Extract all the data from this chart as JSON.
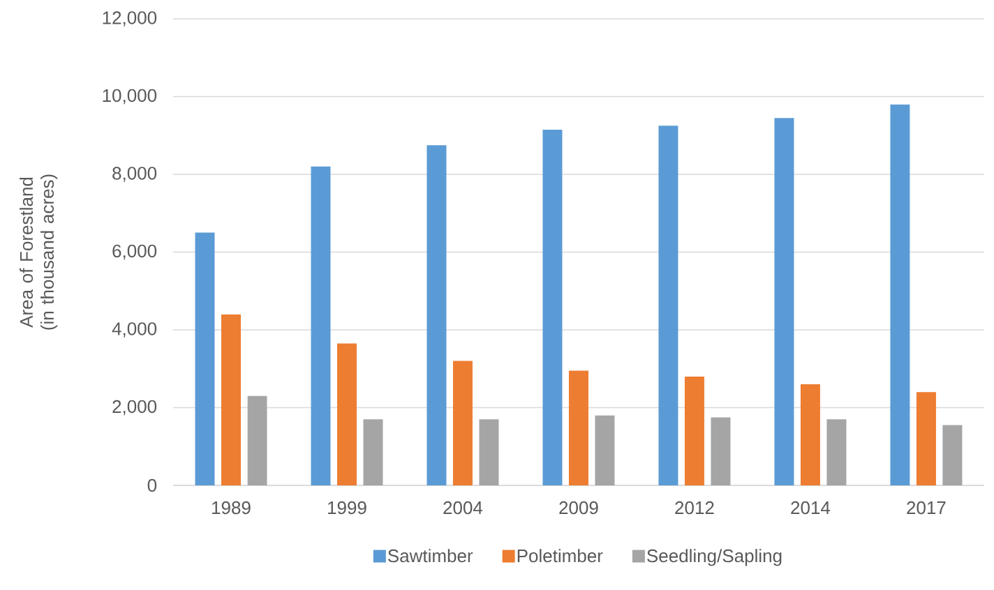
{
  "chart_data": {
    "type": "bar",
    "ylabel": "Area of Forestland (in thousand acres)",
    "categories": [
      "1989",
      "1999",
      "2004",
      "2009",
      "2012",
      "2014",
      "2017"
    ],
    "series": [
      {
        "name": "Sawtimber",
        "color": "#5b9bd5",
        "values": [
          6500,
          8200,
          8750,
          9150,
          9250,
          9450,
          9800
        ]
      },
      {
        "name": "Poletimber",
        "color": "#ed7d31",
        "values": [
          4400,
          3650,
          3200,
          2950,
          2800,
          2600,
          2400
        ]
      },
      {
        "name": "Seedling/Sapling",
        "color": "#a5a5a5",
        "values": [
          2300,
          1700,
          1700,
          1800,
          1750,
          1700,
          1550
        ]
      }
    ],
    "ylim": [
      0,
      12000
    ],
    "yticks": [
      {
        "value": 0,
        "label": "0"
      },
      {
        "value": 2000,
        "label": "2,000"
      },
      {
        "value": 4000,
        "label": "4,000"
      },
      {
        "value": 6000,
        "label": "6,000"
      },
      {
        "value": 8000,
        "label": "8,000"
      },
      {
        "value": 10000,
        "label": "10,000"
      },
      {
        "value": 12000,
        "label": "12,000"
      }
    ],
    "grid": "y",
    "legend": "bottom"
  }
}
